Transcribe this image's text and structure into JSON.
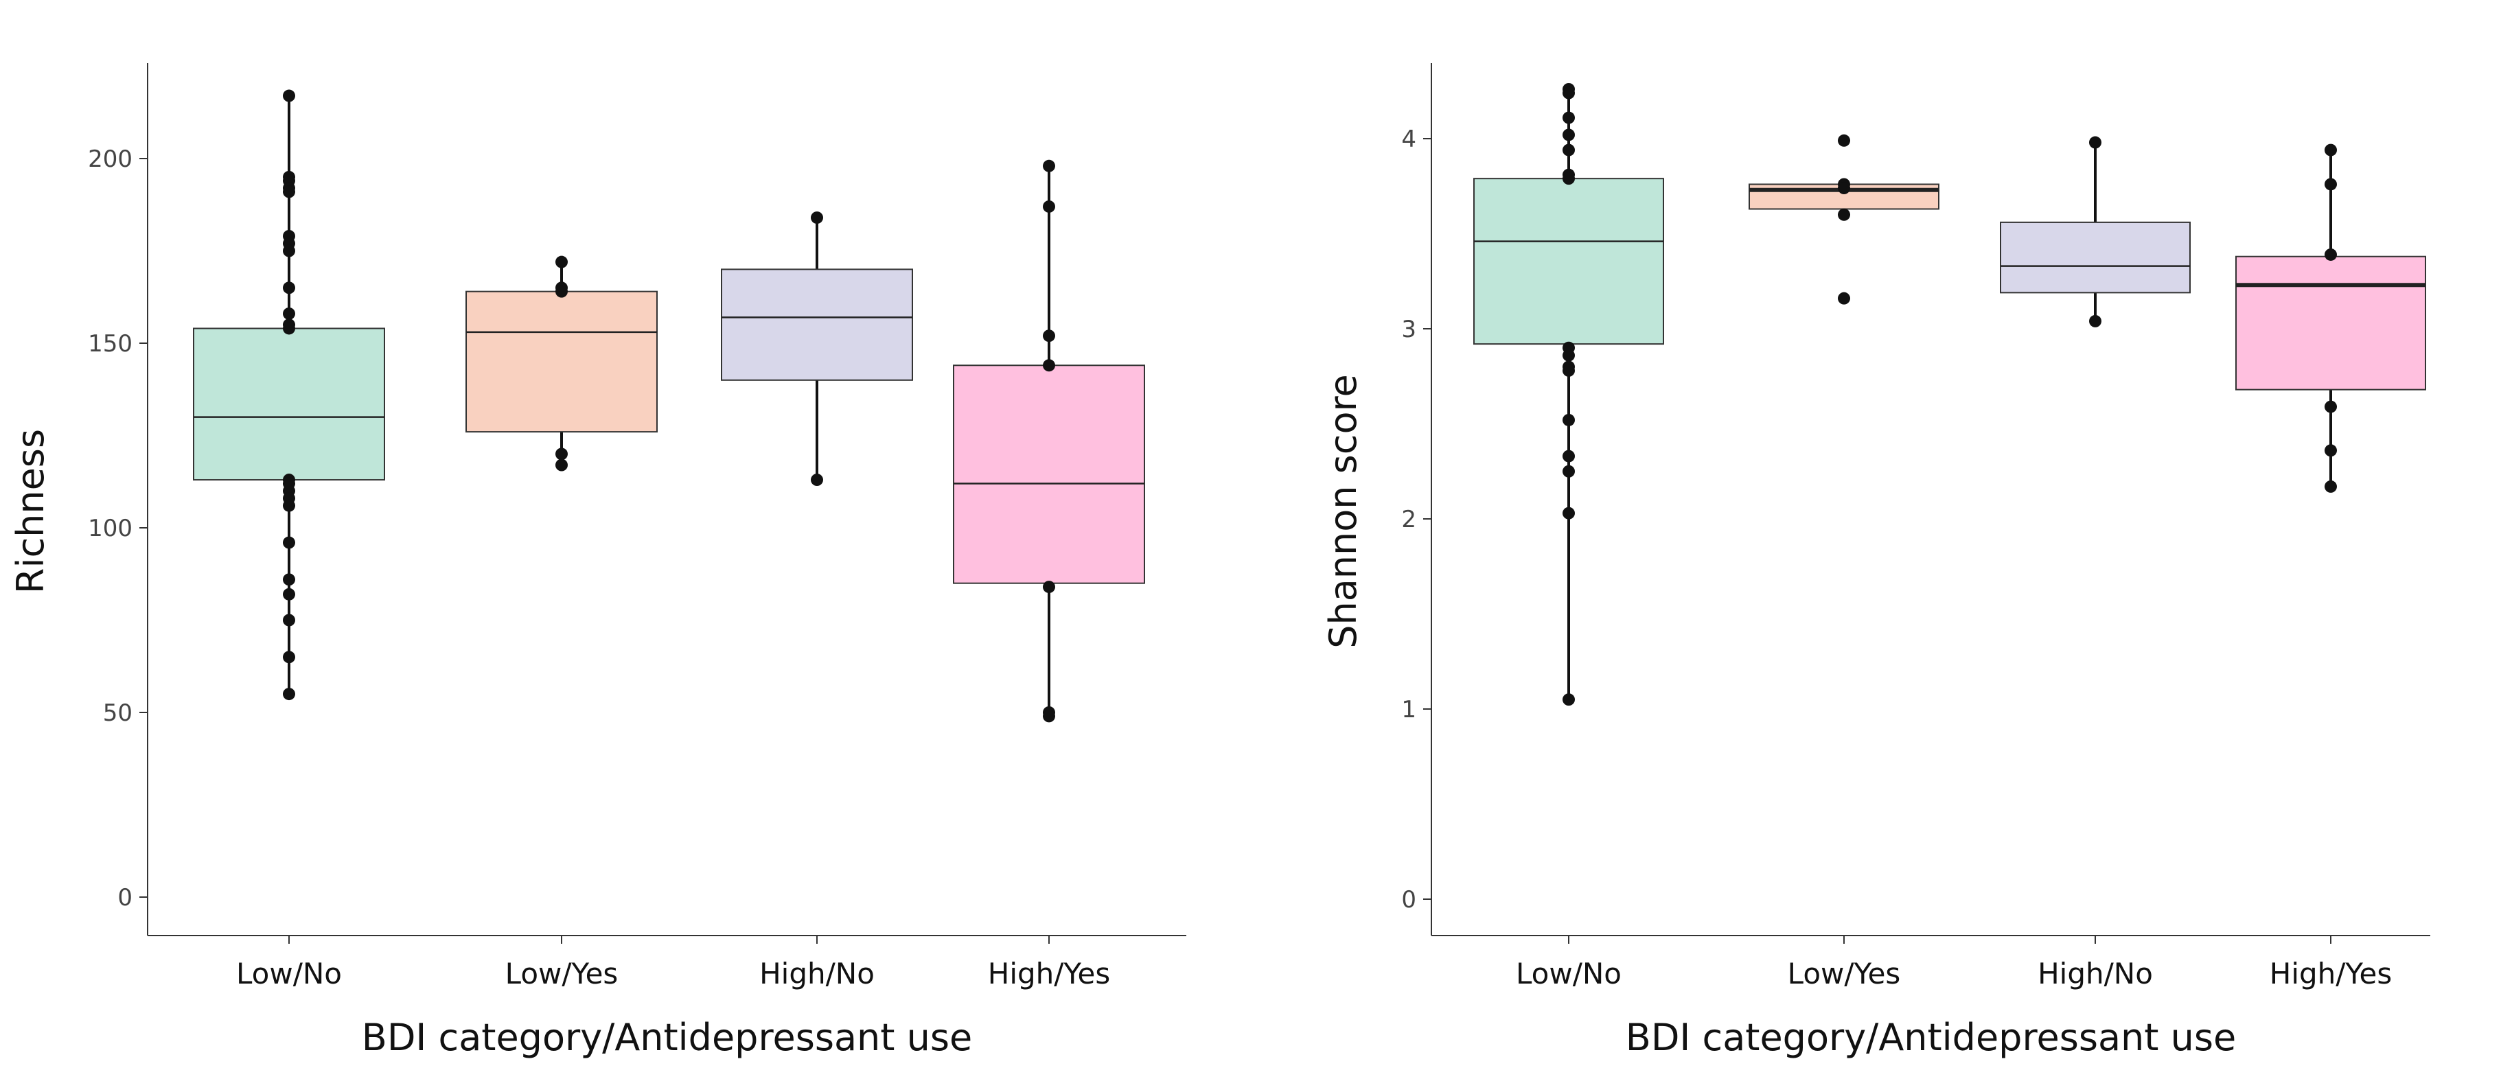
{
  "figure": {
    "panels": [
      "left",
      "right"
    ]
  },
  "chart_data": [
    {
      "type": "boxplot",
      "title": "",
      "xlabel": "BDI category/Antidepressant use",
      "ylabel": "Richness",
      "ylim": [
        0,
        225
      ],
      "yticks": [
        0,
        50,
        100,
        150,
        200
      ],
      "grid": false,
      "legend": "none",
      "categories": [
        "Low/No",
        "Low/Yes",
        "High/No",
        "High/Yes"
      ],
      "boxes": [
        {
          "category": "Low/No",
          "color": "#bfe6d9",
          "q1": 113,
          "median": 130,
          "q3": 154,
          "whisker_low": 55,
          "whisker_high": 217,
          "points": [
            217,
            195,
            194,
            192,
            191,
            179,
            177,
            175,
            165,
            158,
            155,
            154,
            113,
            112,
            110,
            108,
            106,
            96,
            86,
            82,
            75,
            65,
            55
          ]
        },
        {
          "category": "Low/Yes",
          "color": "#f9d1c0",
          "q1": 126,
          "median": 153,
          "q3": 164,
          "whisker_low": 117,
          "whisker_high": 172,
          "points": [
            172,
            165,
            164,
            120,
            117
          ]
        },
        {
          "category": "High/No",
          "color": "#d8d7ea",
          "q1": 140,
          "median": 157,
          "q3": 170,
          "whisker_low": 113,
          "whisker_high": 184,
          "points": [
            184,
            113
          ]
        },
        {
          "category": "High/Yes",
          "color": "#ffc0df",
          "q1": 85,
          "median": 112,
          "q3": 144,
          "whisker_low": 49,
          "whisker_high": 198,
          "points": [
            198,
            187,
            152,
            144,
            84,
            50,
            49
          ]
        }
      ]
    },
    {
      "type": "boxplot",
      "title": "",
      "xlabel": "BDI category/Antidepressant use",
      "ylabel": "Shannon score",
      "ylim": [
        0,
        4.4
      ],
      "yticks": [
        0,
        1,
        2,
        3,
        4
      ],
      "grid": false,
      "legend": "none",
      "categories": [
        "Low/No",
        "Low/Yes",
        "High/No",
        "High/Yes"
      ],
      "boxes": [
        {
          "category": "Low/No",
          "color": "#bfe6d9",
          "q1": 2.92,
          "median": 3.46,
          "q3": 3.79,
          "whisker_low": 1.05,
          "whisker_high": 4.26,
          "points": [
            4.26,
            4.24,
            4.11,
            4.02,
            3.94,
            3.81,
            3.79,
            2.9,
            2.86,
            2.8,
            2.78,
            2.52,
            2.33,
            2.25,
            2.03,
            1.05
          ]
        },
        {
          "category": "Low/Yes",
          "color": "#f9d1c0",
          "q1": 3.63,
          "median": 3.73,
          "q3": 3.76,
          "whisker_low": 3.6,
          "whisker_high": 3.76,
          "points": [
            3.99,
            3.76,
            3.74,
            3.6,
            3.16
          ]
        },
        {
          "category": "High/No",
          "color": "#d8d7ea",
          "q1": 3.19,
          "median": 3.33,
          "q3": 3.56,
          "whisker_low": 3.04,
          "whisker_high": 3.98,
          "points": [
            3.98,
            3.04
          ]
        },
        {
          "category": "High/Yes",
          "color": "#ffc0df",
          "q1": 2.68,
          "median": 3.23,
          "q3": 3.38,
          "whisker_low": 2.17,
          "whisker_high": 3.94,
          "points": [
            3.94,
            3.76,
            3.39,
            2.59,
            2.36,
            2.17
          ]
        }
      ]
    }
  ]
}
